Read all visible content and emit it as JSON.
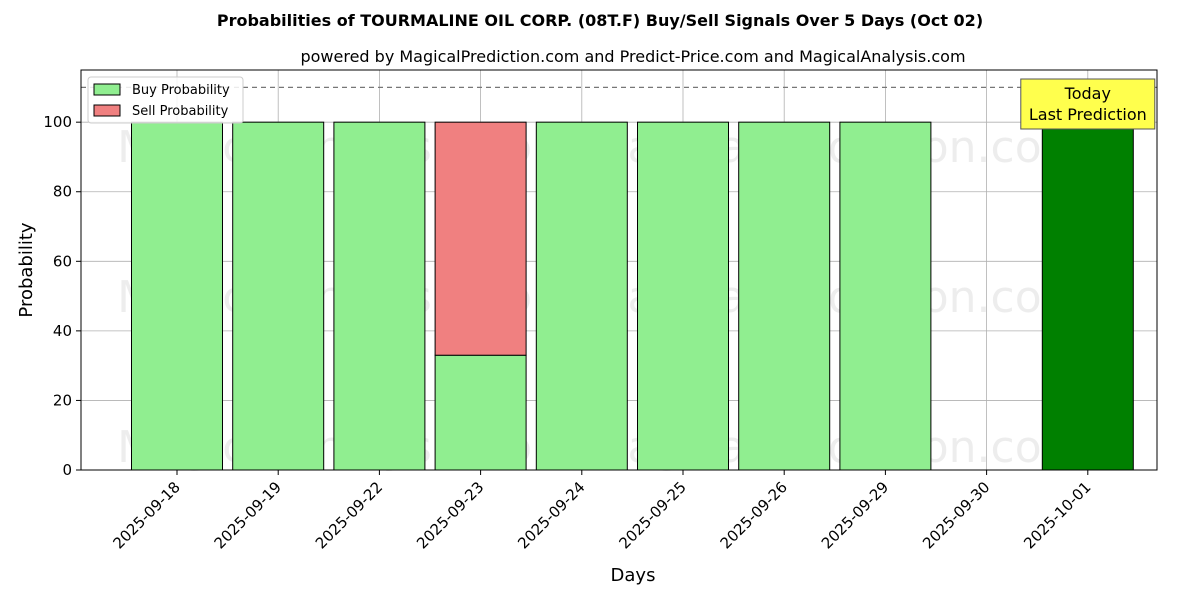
{
  "chart_data": {
    "type": "bar",
    "title": "Probabilities of TOURMALINE OIL CORP. (08T.F) Buy/Sell Signals Over 5 Days (Oct 02)",
    "subtitle": "powered by MagicalPrediction.com and Predict-Price.com and MagicalAnalysis.com",
    "xlabel": "Days",
    "ylabel": "Probability",
    "ylim": [
      0,
      115
    ],
    "yticks": [
      0,
      20,
      40,
      60,
      80,
      100
    ],
    "categories": [
      "2025-09-18",
      "2025-09-19",
      "2025-09-22",
      "2025-09-23",
      "2025-09-24",
      "2025-09-25",
      "2025-09-26",
      "2025-09-29",
      "2025-09-30",
      "2025-10-01"
    ],
    "series": [
      {
        "name": "Buy Probability",
        "color": "#90ee90",
        "values": [
          100,
          100,
          100,
          33,
          100,
          100,
          100,
          100,
          0,
          100
        ]
      },
      {
        "name": "Sell Probability",
        "color": "#f08080",
        "values": [
          0,
          0,
          0,
          67,
          0,
          0,
          0,
          0,
          0,
          0
        ]
      }
    ],
    "highlight": {
      "category": "2025-10-01",
      "color": "#008000"
    },
    "reference_line": {
      "y": 110,
      "style": "dashed"
    },
    "annotation": {
      "lines": [
        "Today",
        "Last Prediction"
      ],
      "color": "#ffff4d"
    },
    "watermarks": [
      "MagicalAnalysis.com",
      "MagicalPrediction.com"
    ],
    "legend_position": "top-left",
    "grid": true
  }
}
